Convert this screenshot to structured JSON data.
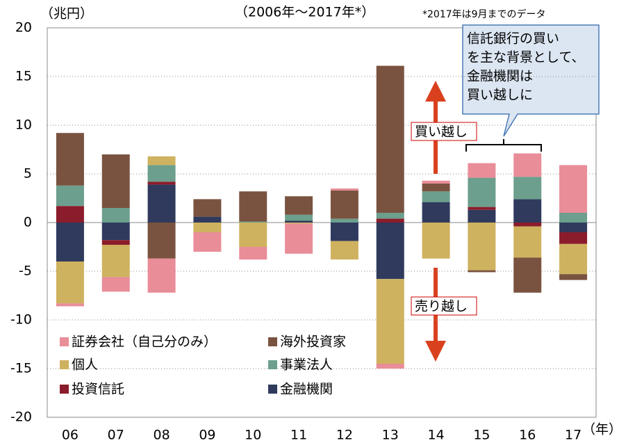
{
  "chart_data": {
    "type": "bar",
    "stacked": true,
    "title": "（2006年～2017年*）",
    "note": "*2017年は9月までのデータ",
    "y_unit": "（兆円）",
    "x_unit": "（年）",
    "categories": [
      "06",
      "07",
      "08",
      "09",
      "10",
      "11",
      "12",
      "13",
      "14",
      "15",
      "16",
      "17"
    ],
    "series": [
      {
        "name": "証券会社（自己分のみ）",
        "color": "#e98d98",
        "values": [
          -0.3,
          -1.5,
          -3.5,
          -2.0,
          -1.3,
          -3.1,
          0.2,
          -0.5,
          0.3,
          1.5,
          2.4,
          4.9
        ]
      },
      {
        "name": "海外投資家",
        "color": "#7a5340",
        "values": [
          5.4,
          5.5,
          -3.7,
          1.8,
          3.1,
          1.9,
          2.9,
          15.1,
          0.8,
          -0.2,
          -3.6,
          -0.6
        ]
      },
      {
        "name": "個人",
        "color": "#cfb25f",
        "values": [
          -4.3,
          -3.3,
          0.9,
          -1.0,
          -2.5,
          -0.1,
          -1.9,
          -8.7,
          -3.7,
          -4.9,
          -3.2,
          -3.1
        ]
      },
      {
        "name": "事業法人",
        "color": "#6c9f8d",
        "values": [
          2.1,
          1.5,
          1.7,
          0,
          0.1,
          0.6,
          0.4,
          0.6,
          1.1,
          3.0,
          2.3,
          1.0
        ]
      },
      {
        "name": "投資信託",
        "color": "#8b1c2b",
        "values": [
          1.7,
          -0.5,
          0.3,
          0,
          0,
          0,
          0,
          0.4,
          0,
          0.3,
          -0.4,
          -1.2
        ]
      },
      {
        "name": "金融機関",
        "color": "#2f3a5d",
        "values": [
          -4.0,
          -1.8,
          3.9,
          0.6,
          0,
          0.2,
          -1.9,
          -5.8,
          2.1,
          1.3,
          2.4,
          -1.0
        ]
      }
    ],
    "ylim": [
      -20,
      20
    ],
    "yticks": [
      -20,
      -15,
      -10,
      -5,
      0,
      5,
      10,
      15,
      20
    ],
    "grid": true,
    "annotations": {
      "buy": "買い越し",
      "sell": "売り越し",
      "callout": [
        "信託銀行の買い",
        "を主な背景として、",
        "金融機関は",
        "買い越しに"
      ]
    }
  }
}
